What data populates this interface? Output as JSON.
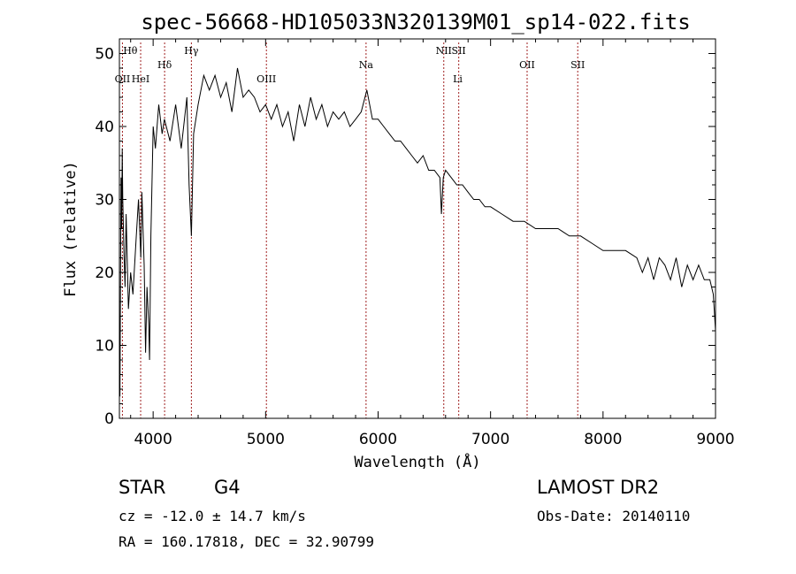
{
  "chart_data": {
    "type": "line",
    "title": "spec-56668-HD105033N320139M01_sp14-022.fits",
    "xlabel": "Wavelength (Å)",
    "ylabel": "Flux (relative)",
    "xlim": [
      3700,
      9000
    ],
    "ylim": [
      0,
      52
    ],
    "xticks": [
      4000,
      5000,
      6000,
      7000,
      8000,
      9000
    ],
    "yticks": [
      0,
      10,
      20,
      30,
      40,
      50
    ],
    "grid": false,
    "series": [
      {
        "x": [
          3700,
          3705,
          3710,
          3715,
          3720,
          3725,
          3730,
          3740,
          3750,
          3760,
          3780,
          3800,
          3820,
          3850,
          3870,
          3890,
          3900,
          3920,
          3933,
          3945,
          3960,
          3968,
          3980,
          4000,
          4020,
          4050,
          4080,
          4100,
          4150,
          4200,
          4250,
          4300,
          4320,
          4340,
          4360,
          4400,
          4450,
          4500,
          4550,
          4600,
          4650,
          4700,
          4750,
          4800,
          4850,
          4900,
          4950,
          5000,
          5050,
          5100,
          5150,
          5200,
          5250,
          5300,
          5350,
          5400,
          5450,
          5500,
          5550,
          5600,
          5650,
          5700,
          5750,
          5800,
          5850,
          5900,
          5950,
          6000,
          6050,
          6100,
          6150,
          6200,
          6250,
          6300,
          6350,
          6400,
          6450,
          6500,
          6550,
          6563,
          6580,
          6600,
          6650,
          6700,
          6750,
          6800,
          6850,
          6900,
          6950,
          7000,
          7100,
          7200,
          7300,
          7400,
          7500,
          7600,
          7700,
          7800,
          7900,
          8000,
          8100,
          8200,
          8300,
          8350,
          8400,
          8450,
          8500,
          8550,
          8600,
          8650,
          8700,
          8750,
          8800,
          8850,
          8900,
          8950,
          8980,
          9000
        ],
        "y": [
          12,
          3,
          20,
          33,
          26,
          37,
          30,
          23,
          18,
          28,
          15,
          20,
          17,
          25,
          30,
          22,
          31,
          21,
          9,
          18,
          13,
          8,
          25,
          40,
          37,
          43,
          39,
          41,
          38,
          43,
          37,
          44,
          32,
          25,
          39,
          43,
          47,
          45,
          47,
          44,
          46,
          42,
          48,
          44,
          45,
          44,
          42,
          43,
          41,
          43,
          40,
          42,
          38,
          43,
          40,
          44,
          41,
          43,
          40,
          42,
          41,
          42,
          40,
          41,
          42,
          45,
          41,
          41,
          40,
          39,
          38,
          38,
          37,
          36,
          35,
          36,
          34,
          34,
          33,
          28,
          33,
          34,
          33,
          32,
          32,
          31,
          30,
          30,
          29,
          29,
          28,
          27,
          27,
          26,
          26,
          26,
          25,
          25,
          24,
          23,
          23,
          23,
          22,
          20,
          22,
          19,
          22,
          21,
          19,
          22,
          18,
          21,
          19,
          21,
          19,
          19,
          17,
          12
        ]
      }
    ],
    "line_labels": [
      {
        "text": "Hθ",
        "x": 3797,
        "row": 0,
        "line": false
      },
      {
        "text": "OII",
        "x": 3727,
        "row": 1,
        "line": true
      },
      {
        "text": "HeI",
        "x": 3889,
        "row": 1,
        "line": true
      },
      {
        "text": "Hδ",
        "x": 4102,
        "row": 0.5,
        "line": true
      },
      {
        "text": "Hγ",
        "x": 4340,
        "row": 0,
        "line": true
      },
      {
        "text": "OIII",
        "x": 5007,
        "row": 1,
        "line": true
      },
      {
        "text": "Na",
        "x": 5893,
        "row": 0.5,
        "line": true
      },
      {
        "text": "NII",
        "x": 6584,
        "row": 0,
        "line": true
      },
      {
        "text": "SII",
        "x": 6717,
        "row": 0,
        "line": true
      },
      {
        "text": "Li",
        "x": 6708,
        "row": 1,
        "line": false
      },
      {
        "text": "OII",
        "x": 7325,
        "row": 0.5,
        "line": true
      },
      {
        "text": "SII",
        "x": 7775,
        "row": 0.5,
        "line": true
      }
    ],
    "line_marker_color": "#a02020"
  },
  "info": {
    "class": "STAR",
    "subclass": "G4",
    "survey": "LAMOST DR2",
    "cz": "cz = -12.0 ± 14.7 km/s",
    "obs_date": "Obs-Date: 20140110",
    "radec": "RA = 160.17818, DEC =  32.90799"
  }
}
